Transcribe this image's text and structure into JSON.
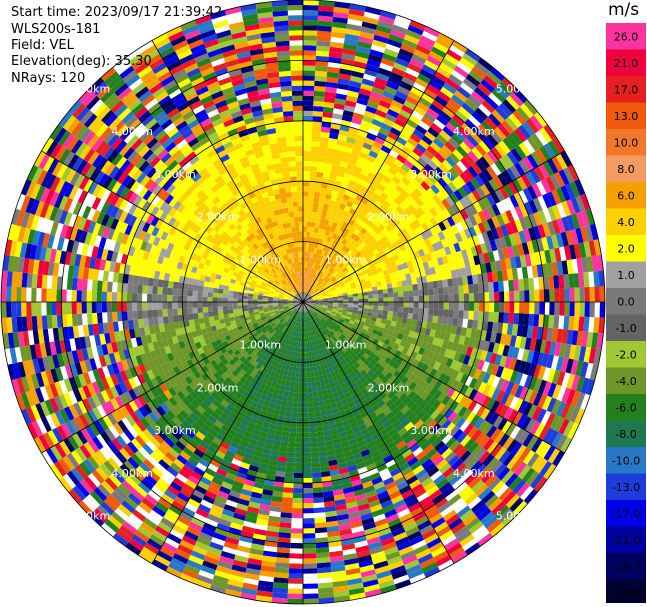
{
  "header": {
    "start_time": "Start time: 2023/09/17 21:39:42",
    "station": "WLS200s-181",
    "field": "Field: VEL",
    "elevation": "Elevation(deg): 35.30",
    "nrays": "NRays: 120"
  },
  "colorbar": {
    "unit": "m/s",
    "levels": [
      {
        "label": "26.0",
        "color": "#ff33a0"
      },
      {
        "label": "21.0",
        "color": "#f0003c"
      },
      {
        "label": "17.0",
        "color": "#e62020"
      },
      {
        "label": "13.0",
        "color": "#f05a0a"
      },
      {
        "label": "10.0",
        "color": "#f07828"
      },
      {
        "label": "8.0",
        "color": "#f59a60"
      },
      {
        "label": "6.0",
        "color": "#f5a000"
      },
      {
        "label": "4.0",
        "color": "#ffd000"
      },
      {
        "label": "2.0",
        "color": "#ffff00"
      },
      {
        "label": "1.0",
        "color": "#a0a0a0"
      },
      {
        "label": "0.0",
        "color": "#7a7a7a"
      },
      {
        "label": "-1.0",
        "color": "#646464"
      },
      {
        "label": "-2.0",
        "color": "#a0c832"
      },
      {
        "label": "-4.0",
        "color": "#6e9628"
      },
      {
        "label": "-6.0",
        "color": "#22801e"
      },
      {
        "label": "-8.0",
        "color": "#1e7850"
      },
      {
        "label": "-10.0",
        "color": "#2878c8"
      },
      {
        "label": "-13.0",
        "color": "#1e3cdc"
      },
      {
        "label": "-17.0",
        "color": "#0000e6"
      },
      {
        "label": "-21.0",
        "color": "#0000a0"
      },
      {
        "label": "-26.0",
        "color": "#000064"
      },
      {
        "label": "-30.0",
        "color": "#000032"
      }
    ]
  },
  "chart_data": {
    "type": "heatmap",
    "projection": "polar PPI",
    "field": "VEL",
    "unit": "m/s",
    "nrays": 120,
    "range_rings_km": [
      1.0,
      2.0,
      3.0,
      4.0,
      5.0
    ],
    "ring_labels": [
      "1.00km",
      "2.00km",
      "3.00km",
      "4.00km",
      "5.00km"
    ],
    "azimuth_lines_deg": [
      0,
      30,
      60,
      90,
      120,
      150,
      180,
      210,
      240,
      270,
      300,
      330
    ],
    "max_range_km": 5.0,
    "pattern": "north half receding (+2 to +10 m/s), south half approaching (-1 to -8 m/s), near-zero band east-west, noisy random velocities beyond ~3 km"
  }
}
